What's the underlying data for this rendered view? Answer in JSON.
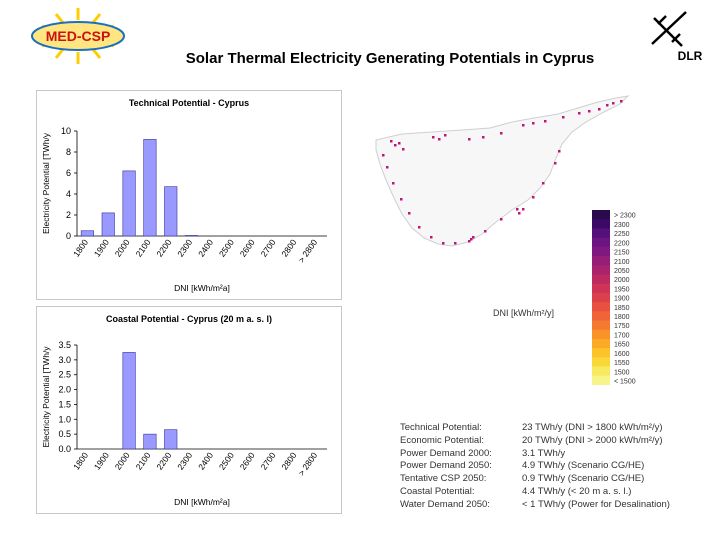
{
  "slide_title": "Solar Thermal Electricity Generating Potentials in Cyprus",
  "logo_left_text": "MED-CSP",
  "logo_right_text": "DLR",
  "colors": {
    "bar_fill": "#9999ff",
    "bar_stroke": "#333399",
    "map_dots": "#c0147a"
  },
  "chart_data": [
    {
      "type": "bar",
      "title": "Technical Potential - Cyprus",
      "xlabel": "DNI [kWh/m²a]",
      "ylabel": "Electricity Potential [TWh/y",
      "ylim": [
        0,
        10
      ],
      "yticks": [
        "0",
        "2",
        "4",
        "6",
        "8",
        "10"
      ],
      "categories": [
        "1800",
        "1900",
        "2000",
        "2100",
        "2200",
        "2300",
        "2400",
        "2500",
        "2600",
        "2700",
        "2800",
        "> 2800"
      ],
      "values": [
        0.5,
        2.2,
        6.2,
        9.2,
        4.7,
        0.05,
        0,
        0,
        0,
        0,
        0,
        0
      ]
    },
    {
      "type": "bar",
      "title": "Coastal Potential - Cyprus (20 m a. s. l)",
      "xlabel": "DNI [kWh/m²a]",
      "ylabel": "Electricity Potential [TWh/y",
      "ylim": [
        0,
        3.5
      ],
      "yticks": [
        "0.0",
        "0.5",
        "1.0",
        "1.5",
        "2.0",
        "2.5",
        "3.0",
        "3.5"
      ],
      "categories": [
        "1800",
        "1900",
        "2000",
        "2100",
        "2200",
        "2300",
        "2400",
        "2500",
        "2600",
        "2700",
        "2800",
        "> 2800"
      ],
      "values": [
        0,
        0,
        3.25,
        0.5,
        0.65,
        0,
        0,
        0,
        0,
        0,
        0,
        0
      ]
    }
  ],
  "map": {
    "dni_unit_label": "DNI [kWh/m²/y]",
    "legend_values": [
      "> 2300",
      "2300",
      "2250",
      "2200",
      "2150",
      "2100",
      "2050",
      "2000",
      "1950",
      "1900",
      "1850",
      "1800",
      "1750",
      "1700",
      "1650",
      "1600",
      "1550",
      "1500",
      "< 1500"
    ]
  },
  "info": [
    {
      "label": "Technical Potential:",
      "value": "23 TWh/y (DNI > 1800 kWh/m²/y)"
    },
    {
      "label": "Economic Potential:",
      "value": "20 TWh/y (DNI > 2000 kWh/m²/y)"
    },
    {
      "label": "Power Demand 2000:",
      "value": "3.1 TWh/y"
    },
    {
      "label": "Power Demand 2050:",
      "value": "4.9 TWh/y (Scenario CG/HE)"
    },
    {
      "label": "Tentative CSP 2050:",
      "value": "0.9 TWh/y (Scenario CG/HE)"
    },
    {
      "label": "Coastal Potential:",
      "value": "4.4 TWh/y (< 20 m a. s. l.)"
    },
    {
      "label": "Water Demand 2050:",
      "value": "< 1 TWh/y (Power for Desalination)"
    }
  ]
}
